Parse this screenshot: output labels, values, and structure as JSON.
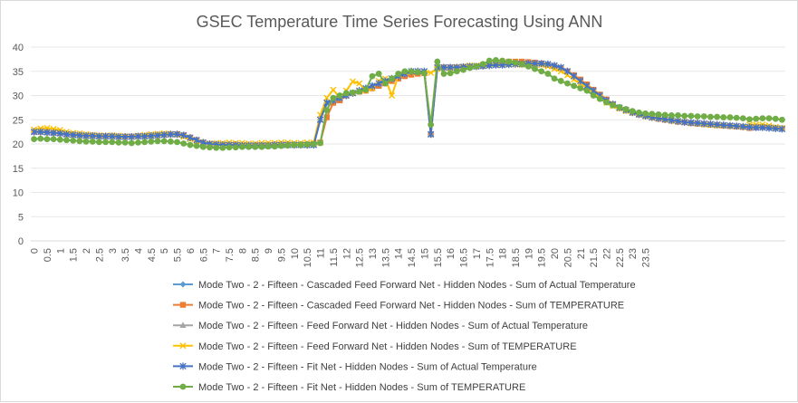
{
  "chart_data": {
    "type": "line",
    "title": "GSEC Temperature Time Series Forecasting Using ANN",
    "xlabel": "",
    "ylabel": "",
    "ylim": [
      0,
      40
    ],
    "yticks": [
      0,
      5,
      10,
      15,
      20,
      25,
      30,
      35,
      40
    ],
    "x_tick_labels": [
      "0",
      "0.5",
      "1",
      "1.5",
      "2",
      "2.5",
      "3",
      "3.5",
      "4",
      "4.5",
      "5",
      "5.5",
      "6",
      "6.5",
      "7",
      "7.5",
      "8",
      "8.5",
      "9",
      "9.5",
      "10",
      "10.5",
      "11",
      "11.5",
      "12",
      "12.5",
      "13",
      "13.5",
      "14",
      "14.5",
      "15",
      "15.5",
      "16",
      "16.5",
      "17",
      "17.5",
      "18",
      "18.5",
      "19",
      "19.5",
      "20",
      "20.5",
      "21",
      "21.5",
      "22",
      "22.5",
      "23",
      "23.5"
    ],
    "x_step": 0.25,
    "grid": "horizontal",
    "legend_position": "bottom",
    "series": [
      {
        "name": "Mode Two - 2 - Fifteen - Cascaded Feed Forward Net - Hidden Nodes - Sum of Actual Temperature",
        "color": "#5b9bd5",
        "marker": "diamond",
        "values": [
          22.5,
          22.5,
          22.4,
          22.3,
          22.2,
          22.0,
          21.9,
          21.8,
          21.7,
          21.7,
          21.6,
          21.6,
          21.6,
          21.5,
          21.5,
          21.5,
          21.6,
          21.6,
          21.7,
          21.8,
          21.9,
          22.0,
          22.0,
          21.8,
          21.3,
          20.8,
          20.3,
          20.0,
          19.9,
          19.8,
          19.8,
          19.8,
          19.7,
          19.7,
          19.7,
          19.7,
          19.7,
          19.8,
          19.8,
          19.8,
          19.8,
          19.8,
          19.8,
          19.8,
          25.0,
          28.5,
          29.0,
          29.5,
          30.0,
          30.5,
          31.0,
          31.5,
          32.0,
          32.5,
          33.0,
          33.5,
          34.0,
          34.5,
          35.0,
          35.0,
          35.0,
          22.0,
          35.8,
          35.8,
          35.8,
          35.8,
          35.9,
          36.0,
          36.0,
          36.1,
          36.2,
          36.3,
          36.3,
          36.4,
          36.5,
          36.5,
          36.6,
          36.6,
          36.6,
          36.5,
          36.2,
          35.8,
          35.0,
          34.0,
          33.0,
          32.0,
          31.0,
          30.0,
          29.0,
          28.2,
          27.5,
          27.0,
          26.5,
          26.1,
          25.8,
          25.5,
          25.3,
          25.1,
          24.9,
          24.7,
          24.5,
          24.4,
          24.3,
          24.2,
          24.1,
          24.0,
          23.9,
          23.8,
          23.7,
          23.6,
          23.5,
          23.4,
          23.4,
          23.3,
          23.2,
          23.1
        ]
      },
      {
        "name": "Mode Two - 2 - Fifteen - Cascaded Feed Forward Net - Hidden Nodes - Sum of TEMPERATURE",
        "color": "#ed7d31",
        "marker": "square",
        "values": [
          22.5,
          22.5,
          22.4,
          22.3,
          22.2,
          22.0,
          21.9,
          21.8,
          21.7,
          21.7,
          21.6,
          21.6,
          21.6,
          21.5,
          21.5,
          21.5,
          21.6,
          21.6,
          21.7,
          21.8,
          21.9,
          22.0,
          22.0,
          21.8,
          21.3,
          20.8,
          20.3,
          20.0,
          19.9,
          19.8,
          19.8,
          19.8,
          19.7,
          19.7,
          19.7,
          19.7,
          19.7,
          19.8,
          19.8,
          19.8,
          19.8,
          19.8,
          19.8,
          20.0,
          20.3,
          25.5,
          28.5,
          29.0,
          30.0,
          30.5,
          30.8,
          31.0,
          31.5,
          32.0,
          32.5,
          33.0,
          33.5,
          34.0,
          34.3,
          34.5,
          34.6,
          22.0,
          35.8,
          35.8,
          35.8,
          35.8,
          35.9,
          36.0,
          36.0,
          36.1,
          36.3,
          36.5,
          36.8,
          37.0,
          37.0,
          37.0,
          36.9,
          36.8,
          36.6,
          36.3,
          36.0,
          35.6,
          35.0,
          34.2,
          33.3,
          32.3,
          31.2,
          30.2,
          29.2,
          28.2,
          27.5,
          27.0,
          26.5,
          26.1,
          25.8,
          25.5,
          25.2,
          25.0,
          24.8,
          24.6,
          24.5,
          24.3,
          24.2,
          24.1,
          24.0,
          23.9,
          23.8,
          23.7,
          23.6,
          23.5,
          23.3,
          23.4,
          23.5,
          23.4,
          23.3,
          23.2
        ]
      },
      {
        "name": "Mode Two - 2 - Fifteen - Feed Forward Net - Hidden Nodes - Sum of Actual Temperature",
        "color": "#a5a5a5",
        "marker": "triangle",
        "values": [
          22.5,
          22.5,
          22.4,
          22.3,
          22.2,
          22.0,
          21.9,
          21.8,
          21.7,
          21.7,
          21.6,
          21.6,
          21.6,
          21.5,
          21.5,
          21.5,
          21.6,
          21.6,
          21.7,
          21.8,
          21.9,
          22.0,
          22.0,
          21.8,
          21.3,
          20.8,
          20.3,
          20.0,
          19.9,
          19.8,
          19.8,
          19.8,
          19.7,
          19.7,
          19.7,
          19.7,
          19.7,
          19.8,
          19.8,
          19.8,
          19.8,
          19.8,
          19.8,
          19.8,
          25.0,
          28.5,
          29.0,
          29.5,
          30.0,
          30.5,
          31.0,
          31.5,
          32.0,
          32.5,
          33.0,
          33.5,
          34.0,
          34.5,
          35.0,
          35.0,
          35.0,
          22.0,
          35.8,
          35.8,
          35.8,
          35.8,
          35.9,
          36.0,
          36.0,
          36.1,
          36.2,
          36.3,
          36.3,
          36.4,
          36.5,
          36.5,
          36.6,
          36.6,
          36.6,
          36.5,
          36.2,
          35.8,
          35.0,
          34.0,
          33.0,
          32.0,
          31.0,
          30.0,
          29.0,
          28.2,
          27.5,
          27.0,
          26.5,
          26.1,
          25.8,
          25.5,
          25.3,
          25.1,
          24.9,
          24.7,
          24.5,
          24.4,
          24.3,
          24.2,
          24.1,
          24.0,
          23.9,
          23.8,
          23.7,
          23.6,
          23.5,
          23.4,
          23.4,
          23.3,
          23.2,
          23.1
        ]
      },
      {
        "name": "Mode Two - 2 - Fifteen - Feed Forward Net - Hidden Nodes - Sum of TEMPERATURE",
        "color": "#ffc000",
        "marker": "x",
        "values": [
          23.0,
          23.2,
          23.3,
          23.1,
          22.9,
          22.5,
          22.3,
          22.2,
          22.0,
          21.9,
          21.8,
          21.7,
          21.8,
          21.7,
          21.6,
          21.6,
          21.7,
          21.9,
          22.0,
          22.1,
          22.2,
          22.1,
          21.9,
          21.5,
          21.0,
          20.6,
          20.3,
          20.1,
          20.2,
          20.2,
          20.3,
          20.2,
          20.2,
          20.1,
          20.1,
          20.2,
          20.2,
          20.2,
          20.3,
          20.3,
          20.2,
          20.2,
          20.3,
          20.3,
          26.0,
          29.5,
          31.2,
          29.5,
          31.0,
          32.9,
          32.5,
          31.0,
          31.5,
          33.0,
          33.5,
          30.0,
          34.0,
          34.5,
          34.8,
          35.0,
          35.0,
          34.7,
          35.5,
          35.8,
          35.6,
          35.9,
          36.0,
          36.2,
          36.2,
          36.3,
          36.4,
          36.5,
          36.5,
          36.5,
          36.4,
          36.3,
          36.4,
          36.3,
          36.3,
          36.0,
          35.5,
          35.0,
          34.2,
          33.3,
          32.5,
          31.5,
          30.5,
          29.5,
          28.5,
          27.8,
          27.3,
          26.8,
          26.4,
          26.0,
          25.7,
          25.4,
          25.2,
          25.0,
          24.8,
          24.6,
          24.5,
          24.3,
          24.2,
          24.0,
          23.9,
          23.8,
          23.8,
          23.7,
          23.6,
          23.5,
          24.0,
          24.0,
          24.0,
          23.8,
          23.5,
          23.3
        ]
      },
      {
        "name": "Mode Two - 2 - Fifteen - Fit Net - Hidden Nodes - Sum of Actual Temperature",
        "color": "#4472c4",
        "marker": "star",
        "values": [
          22.5,
          22.5,
          22.4,
          22.3,
          22.2,
          22.0,
          21.9,
          21.8,
          21.7,
          21.7,
          21.6,
          21.6,
          21.6,
          21.5,
          21.5,
          21.5,
          21.6,
          21.6,
          21.7,
          21.8,
          21.9,
          22.0,
          22.0,
          21.8,
          21.3,
          20.8,
          20.3,
          20.0,
          19.9,
          19.8,
          19.8,
          19.8,
          19.7,
          19.7,
          19.7,
          19.7,
          19.7,
          19.8,
          19.8,
          19.8,
          19.8,
          19.8,
          19.8,
          19.8,
          25.0,
          28.5,
          29.0,
          29.5,
          30.0,
          30.5,
          31.0,
          31.5,
          32.0,
          32.5,
          33.0,
          33.5,
          34.0,
          34.5,
          35.0,
          35.0,
          35.0,
          22.0,
          35.8,
          35.8,
          35.8,
          35.8,
          35.9,
          36.0,
          36.0,
          36.1,
          36.2,
          36.3,
          36.3,
          36.4,
          36.5,
          36.5,
          36.6,
          36.6,
          36.6,
          36.5,
          36.2,
          35.8,
          35.0,
          34.0,
          33.0,
          32.0,
          31.0,
          30.0,
          29.0,
          28.2,
          27.5,
          27.0,
          26.5,
          26.1,
          25.8,
          25.5,
          25.3,
          25.1,
          24.9,
          24.7,
          24.5,
          24.4,
          24.3,
          24.2,
          24.1,
          24.0,
          23.9,
          23.8,
          23.7,
          23.6,
          23.5,
          23.4,
          23.4,
          23.3,
          23.2,
          23.1
        ]
      },
      {
        "name": "Mode Two - 2 - Fifteen - Fit Net - Hidden Nodes - Sum of TEMPERATURE",
        "color": "#70ad47",
        "marker": "circle",
        "values": [
          21.0,
          21.1,
          21.0,
          21.0,
          20.9,
          20.8,
          20.7,
          20.6,
          20.5,
          20.5,
          20.4,
          20.4,
          20.4,
          20.3,
          20.3,
          20.2,
          20.3,
          20.4,
          20.5,
          20.6,
          20.6,
          20.5,
          20.4,
          20.1,
          19.8,
          19.6,
          19.4,
          19.3,
          19.2,
          19.2,
          19.3,
          19.3,
          19.4,
          19.4,
          19.4,
          19.4,
          19.5,
          19.5,
          19.6,
          19.7,
          19.8,
          19.8,
          19.9,
          20.0,
          20.2,
          27.0,
          29.5,
          30.0,
          30.5,
          30.6,
          30.8,
          31.2,
          34.0,
          34.5,
          32.5,
          33.5,
          34.5,
          35.0,
          35.0,
          34.8,
          34.6,
          24.0,
          37.0,
          34.5,
          34.6,
          35.0,
          35.3,
          35.7,
          36.0,
          36.5,
          37.2,
          37.3,
          37.2,
          37.0,
          36.8,
          36.5,
          36.0,
          35.5,
          35.0,
          34.5,
          33.5,
          33.0,
          32.5,
          32.0,
          31.5,
          31.0,
          30.0,
          29.3,
          28.6,
          28.0,
          27.6,
          27.2,
          26.8,
          26.5,
          26.3,
          26.2,
          26.1,
          26.0,
          25.9,
          25.9,
          25.8,
          25.8,
          25.7,
          25.7,
          25.6,
          25.6,
          25.5,
          25.5,
          25.4,
          25.3,
          25.1,
          25.2,
          25.3,
          25.3,
          25.2,
          25.0
        ]
      }
    ]
  }
}
